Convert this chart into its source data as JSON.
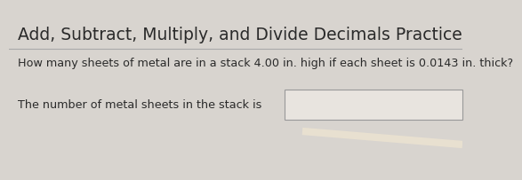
{
  "title": "Add, Subtract, Multiply, and Divide Decimals Practice",
  "question": "How many sheets of metal are in a stack 4.00 in. high if each sheet is 0.0143 in. thick?",
  "answer_label": "The number of metal sheets in the stack is",
  "background_color": "#d8d4cf",
  "title_fontsize": 13.5,
  "question_fontsize": 9.2,
  "answer_fontsize": 9.2,
  "title_color": "#2a2a2a",
  "text_color": "#2a2a2a",
  "box_facecolor": "#e8e4df",
  "box_edge_color": "#999999",
  "separator_color": "#aaaaaa"
}
